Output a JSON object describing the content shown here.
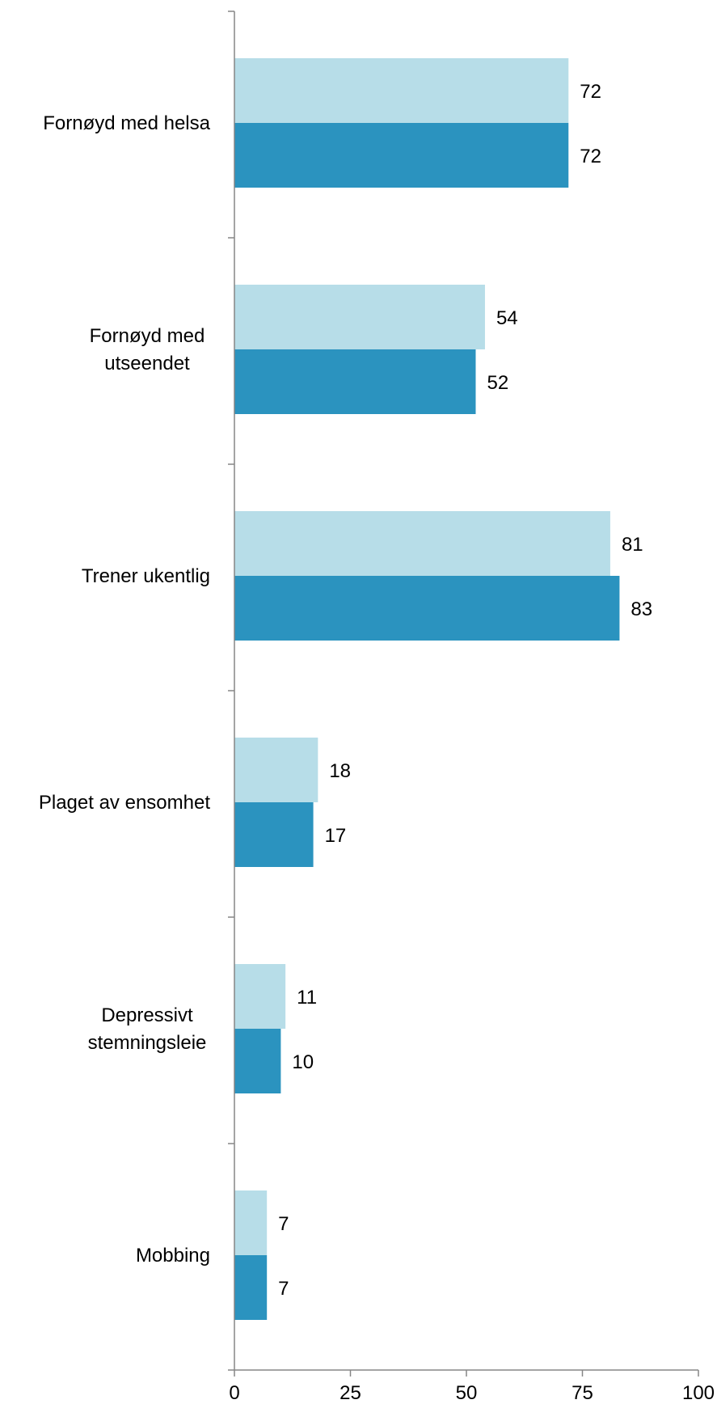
{
  "chart_data": {
    "type": "bar",
    "orientation": "horizontal",
    "categories": [
      [
        "Fornøyd med helsa"
      ],
      [
        "Fornøyd med",
        "utseendet"
      ],
      [
        "Trener ukentlig"
      ],
      [
        "Plaget av ensomhet"
      ],
      [
        "Depressivt",
        "stemningsleie"
      ],
      [
        "Mobbing"
      ]
    ],
    "series": [
      {
        "values": [
          72,
          54,
          81,
          18,
          11,
          7
        ],
        "color": "#b7dde8"
      },
      {
        "values": [
          72,
          52,
          83,
          17,
          10,
          7
        ],
        "color": "#2b93bf"
      }
    ],
    "xlim": [
      0,
      100
    ],
    "xticks": [
      "0",
      "25",
      "50",
      "75",
      "100"
    ],
    "grid": false,
    "legend": "none",
    "axis_color": "#868686"
  }
}
